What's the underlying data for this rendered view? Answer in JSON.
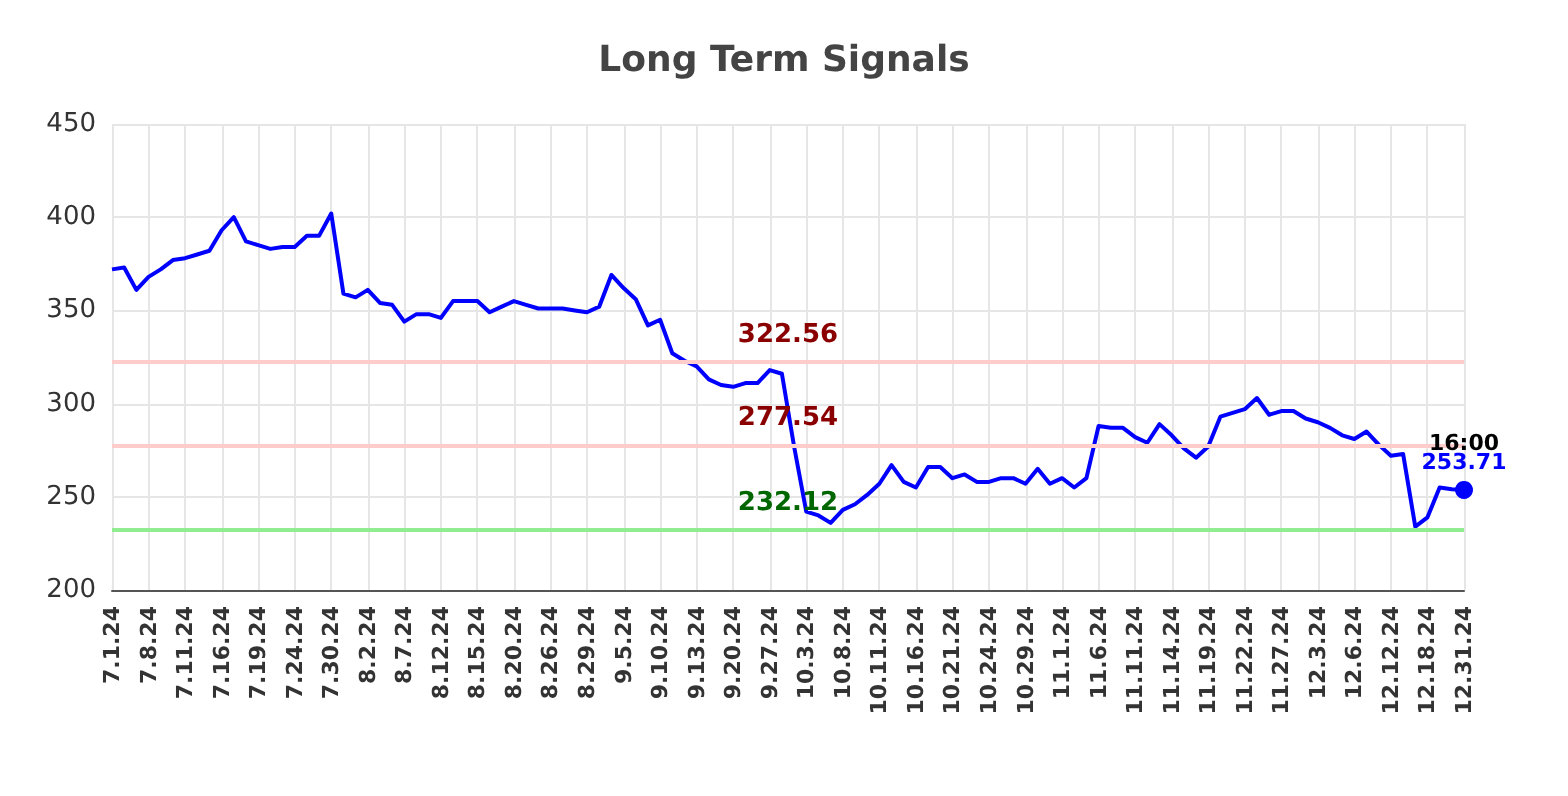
{
  "chart_data": {
    "type": "line",
    "title": "Long Term Signals",
    "categories": [
      "7.1.24",
      null,
      null,
      "7.8.24",
      null,
      null,
      "7.11.24",
      null,
      null,
      "7.16.24",
      null,
      null,
      "7.19.24",
      null,
      null,
      "7.24.24",
      null,
      null,
      "7.30.24",
      null,
      null,
      "8.2.24",
      null,
      null,
      "8.7.24",
      null,
      null,
      "8.12.24",
      null,
      null,
      "8.15.24",
      null,
      null,
      "8.20.24",
      null,
      null,
      "8.26.24",
      null,
      null,
      "8.29.24",
      null,
      null,
      "9.5.24",
      null,
      null,
      "9.10.24",
      null,
      null,
      "9.13.24",
      null,
      null,
      "9.20.24",
      null,
      null,
      "9.27.24",
      null,
      null,
      "10.3.24",
      null,
      null,
      "10.8.24",
      null,
      null,
      "10.11.24",
      null,
      null,
      "10.16.24",
      null,
      null,
      "10.21.24",
      null,
      null,
      "10.24.24",
      null,
      null,
      "10.29.24",
      null,
      null,
      "11.1.24",
      null,
      null,
      "11.6.24",
      null,
      null,
      "11.11.24",
      null,
      null,
      "11.14.24",
      null,
      null,
      "11.19.24",
      null,
      null,
      "11.22.24",
      null,
      null,
      "11.27.24",
      null,
      null,
      "12.3.24",
      null,
      null,
      "12.6.24",
      null,
      null,
      "12.12.24",
      null,
      null,
      "12.18.24",
      null,
      null,
      "12.31.24"
    ],
    "series": [
      {
        "color": "#0000ff",
        "values": [
          372,
          373,
          361,
          368,
          372,
          377,
          378,
          380,
          382,
          393,
          400,
          387,
          385,
          383,
          384,
          384,
          390,
          390,
          402,
          359,
          357,
          361,
          354,
          353,
          344,
          348,
          348,
          346,
          355,
          355,
          355,
          349,
          352,
          355,
          353,
          351,
          351,
          351,
          350,
          349,
          352,
          369,
          362,
          356,
          342,
          345,
          327,
          323,
          320,
          313,
          310,
          309,
          311,
          311,
          318,
          316,
          277,
          242,
          240,
          236,
          243,
          246,
          251,
          257,
          267,
          258,
          255,
          266,
          266,
          260,
          262,
          258,
          258,
          260,
          260,
          257,
          265,
          257,
          260,
          255,
          260,
          288,
          287,
          287,
          282,
          279,
          289,
          283,
          276,
          271,
          277,
          293,
          295,
          297,
          303,
          294,
          296,
          296,
          292,
          290,
          287,
          283,
          281,
          285,
          278,
          272,
          273,
          234,
          239,
          255,
          254,
          253.71
        ],
        "value_labels": [
          null,
          null,
          null,
          null,
          null,
          null,
          null,
          null,
          null,
          null,
          null,
          null,
          null,
          null,
          null,
          null,
          null,
          null,
          null,
          null,
          null,
          null,
          null,
          null,
          null,
          null,
          null,
          null,
          null,
          null,
          null,
          null,
          null,
          null,
          null,
          null,
          null,
          null,
          null,
          null,
          null,
          null,
          null,
          null,
          null,
          null,
          null,
          null,
          null,
          null,
          null,
          null,
          null,
          null,
          null,
          null,
          null,
          null,
          null,
          null,
          null,
          null,
          null,
          null,
          null,
          null,
          null,
          null,
          null,
          null,
          null,
          null,
          null,
          null,
          null,
          null,
          null,
          null,
          null,
          null,
          null,
          null,
          null,
          null,
          null,
          null,
          null,
          null,
          null,
          null,
          null,
          null,
          null,
          null,
          null,
          null,
          null,
          null,
          null,
          null,
          null,
          null,
          null,
          null,
          null,
          null,
          null,
          null,
          null,
          null,
          null,
          "253.71"
        ]
      }
    ],
    "ylim": [
      200,
      450
    ],
    "yticks": [
      200,
      250,
      300,
      350,
      400,
      450
    ],
    "grid": true,
    "marker": "none",
    "ref_lines": [
      {
        "axis": "y",
        "value": 322.56,
        "label": "322.56",
        "color": "#ffcccc"
      },
      {
        "axis": "y",
        "value": 277.54,
        "label": "277.54",
        "color": "#ffcccc"
      },
      {
        "axis": "y",
        "value": 232.12,
        "label": "232.12",
        "color": "#90ee90"
      }
    ],
    "annotations": [
      {
        "text": "16:00",
        "x": "12.31.24",
        "y": 253.71
      }
    ]
  }
}
